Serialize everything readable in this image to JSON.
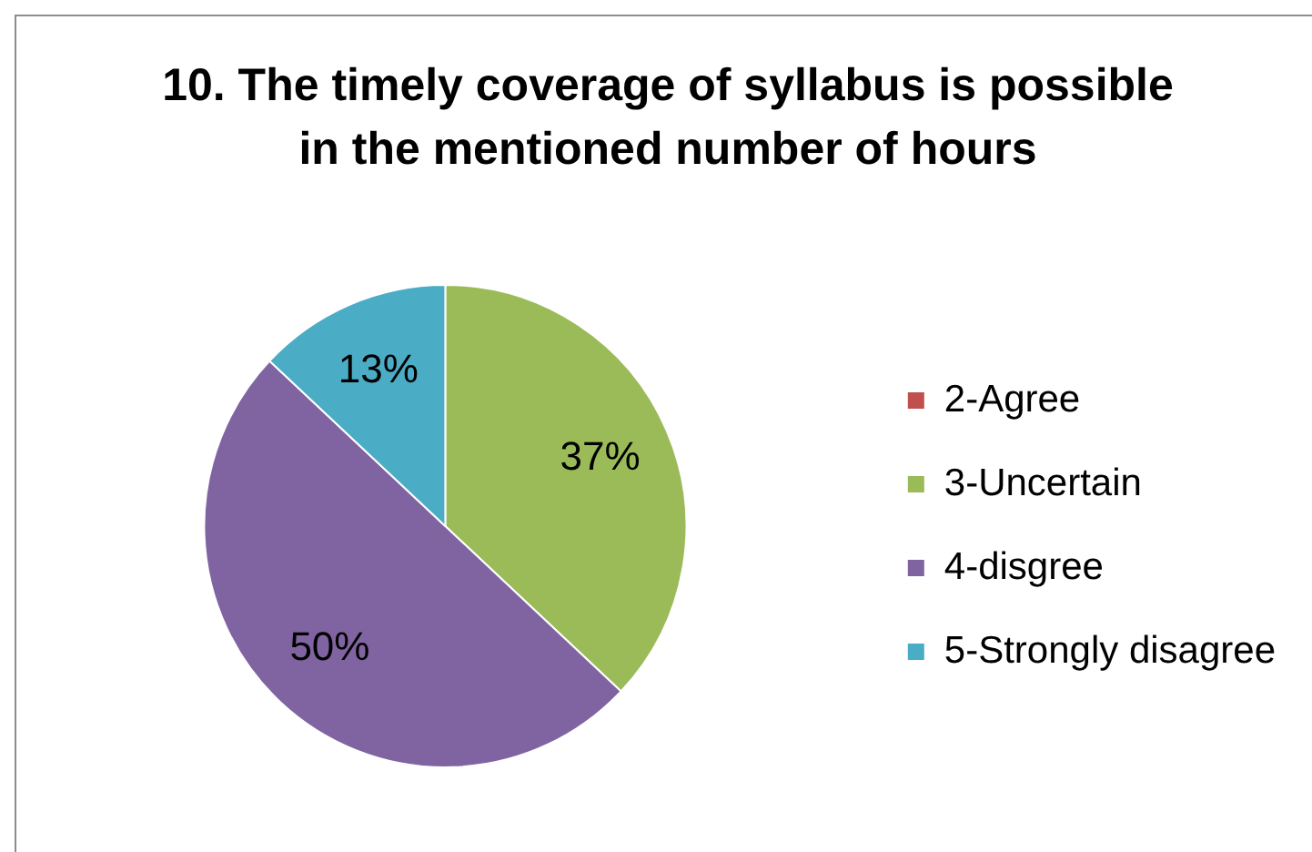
{
  "chart_data": {
    "type": "pie",
    "title": "10. The timely coverage of syllabus is possible in the mentioned number of hours",
    "categories": [
      "2-Agree",
      "3-Uncertain",
      "4-disgree",
      "5-Strongly disagree"
    ],
    "values": [
      0,
      37,
      50,
      13
    ],
    "colors": [
      "#c0504d",
      "#9bbb59",
      "#8064a2",
      "#4bacc6"
    ],
    "value_labels": [
      null,
      "37%",
      "50%",
      "13%"
    ],
    "legend": "right"
  }
}
